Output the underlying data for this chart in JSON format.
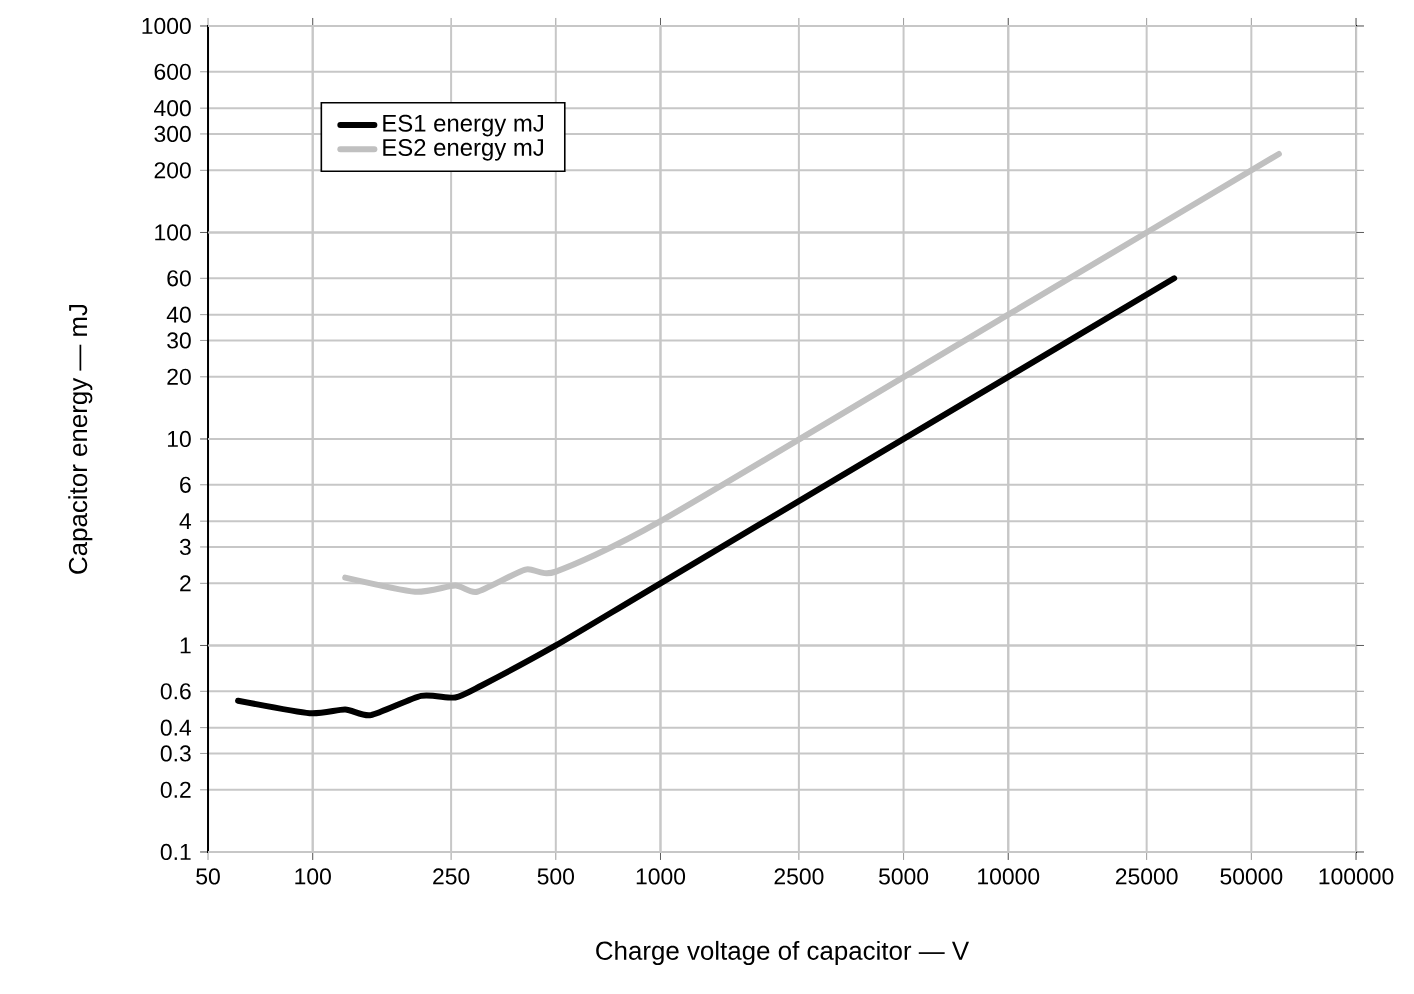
{
  "chart_data": {
    "type": "line",
    "xlabel": "Charge voltage of capacitor — V",
    "ylabel": "Capacitor energy — mJ",
    "log": "xy",
    "xlim": [
      50,
      100000
    ],
    "ylim": [
      0.1,
      1000
    ],
    "xticks": [
      50,
      100,
      250,
      500,
      1000,
      2500,
      5000,
      10000,
      25000,
      50000,
      100000
    ],
    "yticks": [
      0.1,
      0.2,
      0.3,
      0.4,
      0.6,
      1,
      2,
      3,
      4,
      6,
      10,
      20,
      30,
      40,
      60,
      100,
      200,
      300,
      400,
      600,
      1000
    ],
    "grid": true,
    "legend": "top left",
    "series": [
      {
        "name": "ES1 energy mJ",
        "color": "#000000",
        "x": [
          61,
          98,
          124,
          147,
          205,
          257,
          306,
          500,
          1000,
          10000,
          30000
        ],
        "values": [
          0.54,
          0.47,
          0.49,
          0.46,
          0.57,
          0.56,
          0.64,
          1,
          2,
          20,
          60
        ]
      },
      {
        "name": "ES2 energy mJ",
        "color": "#c0c0c0",
        "x": [
          124,
          197,
          257,
          297,
          409,
          500,
          1000,
          10000,
          60000
        ],
        "values": [
          2.13,
          1.82,
          1.95,
          1.82,
          2.33,
          2.28,
          4,
          40,
          240
        ]
      }
    ]
  }
}
